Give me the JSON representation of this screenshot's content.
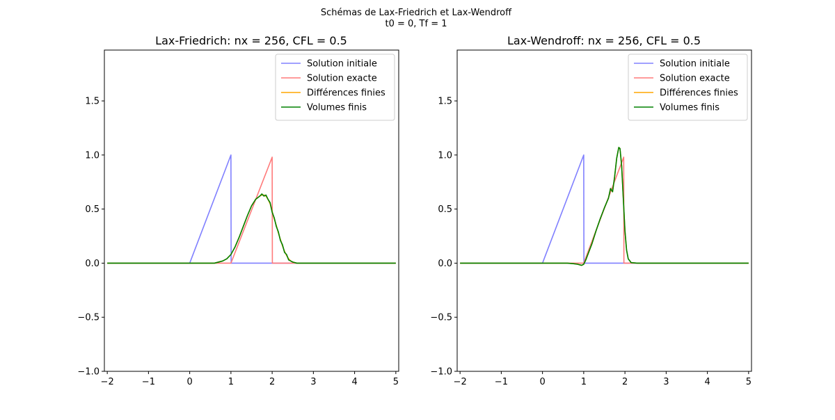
{
  "figure": {
    "suptitle_line1": "Schémas de Lax-Friedrich et Lax-Wendroff",
    "suptitle_line2": "t0 = 0, Tf = 1"
  },
  "colors": {
    "initial": "#8080ff",
    "exact": "#ff7a7a",
    "finite_diff": "#ffa500",
    "finite_vol": "#008000"
  },
  "chart_data": [
    {
      "type": "line",
      "title": "Lax-Friedrich: nx = 256, CFL = 0.5",
      "xlim": [
        -2.07,
        5.07
      ],
      "ylim": [
        -1.0,
        1.97
      ],
      "xticks": [
        -2,
        -1,
        0,
        1,
        2,
        3,
        4,
        5
      ],
      "xtick_labels": [
        "−2",
        "−1",
        "0",
        "1",
        "2",
        "3",
        "4",
        "5"
      ],
      "yticks": [
        -1.0,
        -0.5,
        0.0,
        0.5,
        1.0,
        1.5
      ],
      "ytick_labels": [
        "−1.0",
        "−0.5",
        "0.0",
        "0.5",
        "1.0",
        "1.5"
      ],
      "legend_position": "top-right",
      "series": [
        {
          "name": "Solution initiale",
          "color": "#8080ff",
          "x": [
            -2,
            0,
            1,
            1.005,
            5
          ],
          "y": [
            0,
            0,
            1.0,
            0,
            0
          ]
        },
        {
          "name": "Solution exacte",
          "color": "#ff7a7a",
          "x": [
            -2,
            1,
            2,
            2.005,
            5
          ],
          "y": [
            0,
            0,
            0.98,
            0,
            0
          ]
        },
        {
          "name": "Différences finies",
          "color": "#ffa500",
          "x": [
            -2,
            0.6,
            0.8,
            0.9,
            1.0,
            1.1,
            1.2,
            1.3,
            1.4,
            1.5,
            1.6,
            1.7,
            1.75,
            1.8,
            1.85,
            1.9,
            1.95,
            2.0,
            2.05,
            2.1,
            2.15,
            2.2,
            2.25,
            2.3,
            2.35,
            2.4,
            2.45,
            2.5,
            2.6,
            5
          ],
          "y": [
            0,
            0,
            0.02,
            0.04,
            0.08,
            0.15,
            0.24,
            0.34,
            0.44,
            0.53,
            0.59,
            0.62,
            0.63,
            0.63,
            0.62,
            0.59,
            0.55,
            0.48,
            0.41,
            0.35,
            0.28,
            0.22,
            0.16,
            0.11,
            0.07,
            0.04,
            0.02,
            0.01,
            0.0,
            0
          ]
        },
        {
          "name": "Volumes finis",
          "color": "#008000",
          "x": [
            -2,
            0.6,
            0.8,
            0.9,
            1.0,
            1.1,
            1.2,
            1.3,
            1.4,
            1.5,
            1.6,
            1.7,
            1.75,
            1.8,
            1.85,
            1.9,
            1.95,
            2.0,
            2.05,
            2.1,
            2.15,
            2.2,
            2.25,
            2.3,
            2.35,
            2.4,
            2.45,
            2.5,
            2.6,
            5
          ],
          "y": [
            0,
            0,
            0.02,
            0.04,
            0.08,
            0.15,
            0.24,
            0.34,
            0.44,
            0.53,
            0.59,
            0.62,
            0.64,
            0.62,
            0.63,
            0.59,
            0.56,
            0.47,
            0.42,
            0.34,
            0.29,
            0.21,
            0.17,
            0.1,
            0.08,
            0.03,
            0.02,
            0.01,
            0.0,
            0
          ]
        }
      ]
    },
    {
      "type": "line",
      "title": "Lax-Wendroff: nx = 256, CFL = 0.5",
      "xlim": [
        -2.07,
        5.07
      ],
      "ylim": [
        -1.0,
        1.97
      ],
      "xticks": [
        -2,
        -1,
        0,
        1,
        2,
        3,
        4,
        5
      ],
      "xtick_labels": [
        "−2",
        "−1",
        "0",
        "1",
        "2",
        "3",
        "4",
        "5"
      ],
      "yticks": [
        -1.0,
        -0.5,
        0.0,
        0.5,
        1.0,
        1.5
      ],
      "ytick_labels": [
        "−1.0",
        "−0.5",
        "0.0",
        "0.5",
        "1.0",
        "1.5"
      ],
      "legend_position": "top-right",
      "series": [
        {
          "name": "Solution initiale",
          "color": "#8080ff",
          "x": [
            -2,
            0,
            1,
            1.005,
            5
          ],
          "y": [
            0,
            0,
            1.0,
            0,
            0
          ]
        },
        {
          "name": "Solution exacte",
          "color": "#ff7a7a",
          "x": [
            -2,
            1,
            1.97,
            1.975,
            5
          ],
          "y": [
            0,
            0,
            0.98,
            0,
            0
          ]
        },
        {
          "name": "Différences finies",
          "color": "#ffa500",
          "x": [
            -2,
            0.6,
            0.75,
            0.85,
            0.95,
            1.0,
            1.05,
            1.1,
            1.2,
            1.3,
            1.4,
            1.5,
            1.6,
            1.65,
            1.7,
            1.75,
            1.8,
            1.85,
            1.88,
            1.92,
            1.96,
            2.0,
            2.04,
            2.08,
            2.15,
            2.3,
            5
          ],
          "y": [
            0,
            0,
            -0.005,
            -0.01,
            -0.02,
            -0.01,
            0.03,
            0.08,
            0.18,
            0.3,
            0.41,
            0.51,
            0.6,
            0.69,
            0.66,
            0.8,
            0.97,
            1.07,
            1.06,
            0.9,
            0.6,
            0.3,
            0.12,
            0.04,
            0.005,
            0.0,
            0
          ]
        },
        {
          "name": "Volumes finis",
          "color": "#008000",
          "x": [
            -2,
            0.6,
            0.75,
            0.85,
            0.95,
            1.0,
            1.05,
            1.1,
            1.2,
            1.3,
            1.4,
            1.5,
            1.6,
            1.65,
            1.7,
            1.75,
            1.8,
            1.85,
            1.88,
            1.92,
            1.96,
            2.0,
            2.04,
            2.08,
            2.15,
            2.3,
            5
          ],
          "y": [
            0,
            0,
            -0.005,
            -0.01,
            -0.02,
            -0.01,
            0.03,
            0.08,
            0.18,
            0.3,
            0.41,
            0.51,
            0.6,
            0.69,
            0.66,
            0.8,
            0.97,
            1.07,
            1.06,
            0.9,
            0.6,
            0.3,
            0.12,
            0.04,
            0.005,
            0.0,
            0
          ]
        }
      ]
    }
  ]
}
